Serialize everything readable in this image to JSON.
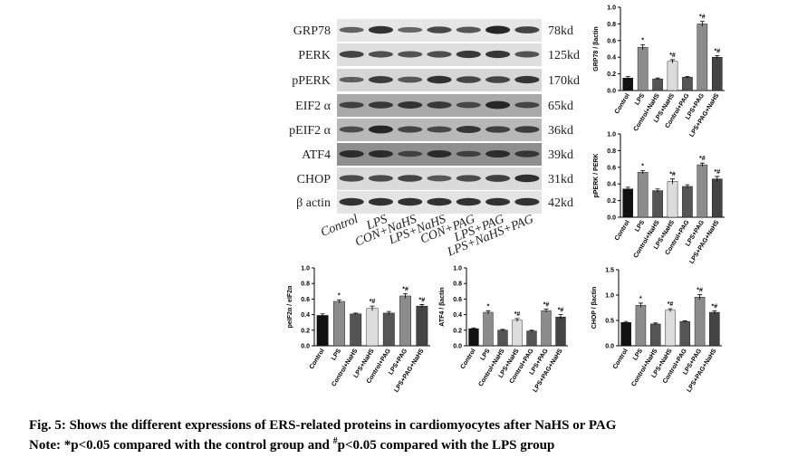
{
  "chart_data": [
    {
      "type": "bar",
      "y_label": "GRP78 / βactin",
      "categories": [
        "Control",
        "LPS",
        "Control+NaHS",
        "LPS+NaHS",
        "Control+PAG",
        "LPS+PAG",
        "LPS+PAG+NaHS"
      ],
      "values": [
        0.15,
        0.52,
        0.14,
        0.35,
        0.16,
        0.8,
        0.4
      ],
      "errors": [
        0.02,
        0.03,
        0.01,
        0.02,
        0.01,
        0.03,
        0.02
      ],
      "annotations": [
        null,
        "*",
        null,
        "*#",
        null,
        "*#",
        "*#"
      ],
      "colors": [
        "#111111",
        "#8c8c8c",
        "#555555",
        "#dcdcdc",
        "#555555",
        "#8c8c8c",
        "#444444"
      ],
      "ylim": [
        0,
        1.0
      ],
      "yticks": [
        {
          "value": 0,
          "label": "0.0"
        },
        0.2,
        0.4,
        0.6,
        0.8,
        {
          "value": 1.0,
          "label": "1.0"
        }
      ]
    },
    {
      "type": "bar",
      "y_label": "pPERK / PERK",
      "categories": [
        "Control",
        "LPS",
        "Control+NaHS",
        "LPS+NaHS",
        "Control+PAG",
        "LPS+PAG",
        "LPS+PAG+NaHS"
      ],
      "values": [
        0.34,
        0.54,
        0.32,
        0.43,
        0.37,
        0.63,
        0.46
      ],
      "errors": [
        0.02,
        0.02,
        0.02,
        0.03,
        0.02,
        0.02,
        0.03
      ],
      "annotations": [
        null,
        "*",
        null,
        "*#",
        null,
        "*#",
        "*#"
      ],
      "colors": [
        "#111111",
        "#8c8c8c",
        "#555555",
        "#dcdcdc",
        "#555555",
        "#8c8c8c",
        "#444444"
      ],
      "ylim": [
        0,
        1.0
      ],
      "yticks": [
        {
          "value": 0,
          "label": "0.0"
        },
        0.2,
        0.4,
        0.6,
        0.8,
        {
          "value": 1.0,
          "label": "1.0"
        }
      ]
    },
    {
      "type": "bar",
      "y_label": "peIF2α / eIF2α",
      "categories": [
        "Control",
        "LPS",
        "Control+NaHS",
        "LPS+NaHS",
        "Control+PAG",
        "LPS+PAG",
        "LPS+PAG+NaHS"
      ],
      "values": [
        0.39,
        0.57,
        0.41,
        0.48,
        0.42,
        0.64,
        0.51
      ],
      "errors": [
        0.02,
        0.02,
        0.01,
        0.03,
        0.02,
        0.03,
        0.02
      ],
      "annotations": [
        null,
        "*",
        null,
        "*#",
        null,
        "*#",
        "*#"
      ],
      "colors": [
        "#111111",
        "#8c8c8c",
        "#555555",
        "#dcdcdc",
        "#555555",
        "#8c8c8c",
        "#444444"
      ],
      "ylim": [
        0,
        1.0
      ],
      "yticks": [
        {
          "value": 0,
          "label": "0.0"
        },
        0.2,
        0.4,
        0.6,
        0.8,
        {
          "value": 1.0,
          "label": "1.0"
        }
      ]
    },
    {
      "type": "bar",
      "y_label": "ATF4 / βactin",
      "categories": [
        "Control",
        "LPS",
        "Control+NaHS",
        "LPS+NaHS",
        "Control+PAG",
        "LPS+PAG",
        "LPS+PAG+NaHS"
      ],
      "values": [
        0.22,
        0.43,
        0.2,
        0.33,
        0.19,
        0.45,
        0.37
      ],
      "errors": [
        0.01,
        0.02,
        0.01,
        0.02,
        0.01,
        0.02,
        0.03
      ],
      "annotations": [
        null,
        "*",
        null,
        "*#",
        null,
        "*#",
        "*#"
      ],
      "colors": [
        "#111111",
        "#8c8c8c",
        "#555555",
        "#dcdcdc",
        "#555555",
        "#8c8c8c",
        "#444444"
      ],
      "ylim": [
        0,
        1.0
      ],
      "yticks": [
        {
          "value": 0,
          "label": "0.0"
        },
        0.2,
        0.4,
        0.6,
        0.8,
        {
          "value": 1.0,
          "label": "1.0"
        }
      ]
    },
    {
      "type": "bar",
      "y_label": "CHOP / βactin",
      "categories": [
        "Control",
        "LPS",
        "Control+NaHS",
        "LPS+NaHS",
        "Control+PAG",
        "LPS+PAG",
        "LPS+PAG+NaHS"
      ],
      "values": [
        0.46,
        0.8,
        0.43,
        0.7,
        0.48,
        0.96,
        0.66
      ],
      "errors": [
        0.02,
        0.04,
        0.02,
        0.03,
        0.01,
        0.05,
        0.03
      ],
      "annotations": [
        null,
        "*",
        null,
        "*#",
        null,
        "*#",
        "*#"
      ],
      "colors": [
        "#111111",
        "#8c8c8c",
        "#555555",
        "#dcdcdc",
        "#555555",
        "#8c8c8c",
        "#444444"
      ],
      "ylim": [
        0,
        1.5
      ],
      "yticks": [
        {
          "value": 0,
          "label": "0.0"
        },
        0.5,
        {
          "value": 1.0,
          "label": "1.0"
        },
        1.5
      ]
    }
  ],
  "blot": {
    "proteins": [
      "GRP78",
      "PERK",
      "pPERK",
      "EIF2 α",
      "pEIF2 α",
      "ATF4",
      "CHOP",
      "β actin"
    ],
    "sizes": [
      "78kd",
      "125kd",
      "170kd",
      "65kd",
      "36kd",
      "39kd",
      "31kd",
      "42kd"
    ],
    "lanes": [
      "Control",
      "LPS",
      "CON+NaHS",
      "LPS+NaHS",
      "CON+PAG",
      "LPS+PAG",
      "LPS+NaHS+PAG"
    ]
  },
  "caption": {
    "title": "Fig. 5: Shows the different expressions of ERS-related proteins in cardiomyocytes after NaHS or PAG",
    "note_start": "Note: *p<0.05 compared with the control group and ",
    "note_mark": "#",
    "note_end": "p<0.05 compared with the LPS group"
  }
}
